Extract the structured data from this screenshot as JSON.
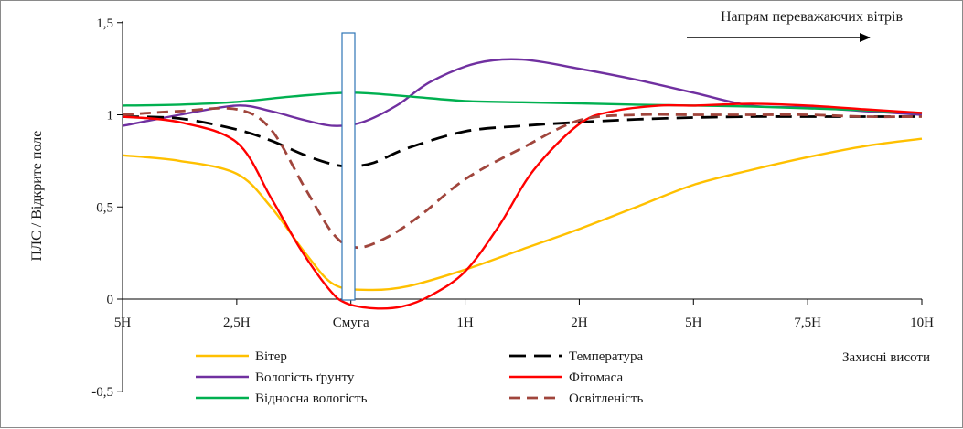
{
  "chart_data": {
    "type": "line",
    "categories": [
      "5Н",
      "2,5Н",
      "Смуга",
      "1Н",
      "2Н",
      "5Н",
      "7,5Н",
      "10Н"
    ],
    "ylabel": "ПЛС / Відкрите поле",
    "xlabel": "Захисні висоти",
    "ylim": [
      -0.5,
      1.5
    ],
    "yticks": [
      "-0,5",
      "0",
      "0,5",
      "1",
      "1,5"
    ],
    "ytick_values": [
      -0.5,
      0,
      0.5,
      1,
      1.5
    ],
    "wind_annotation": "Напрям переважаючих вітрів",
    "legend_position": "bottom",
    "series": [
      {
        "name": "Вітер",
        "color": "#FFC000",
        "dash": "solid",
        "x": [
          0,
          0.5,
          1,
          1.3,
          1.6,
          1.85,
          2.15,
          2.5,
          3,
          3.5,
          4,
          4.5,
          5,
          5.5,
          6,
          6.5,
          7
        ],
        "values": [
          0.78,
          0.75,
          0.68,
          0.5,
          0.25,
          0.08,
          0.05,
          0.07,
          0.16,
          0.27,
          0.38,
          0.5,
          0.62,
          0.7,
          0.77,
          0.83,
          0.87
        ]
      },
      {
        "name": "Вологість ґрунту",
        "color": "#7030A0",
        "dash": "solid",
        "x": [
          0,
          0.5,
          1,
          1.3,
          1.6,
          1.85,
          2.1,
          2.4,
          2.7,
          3.1,
          3.5,
          4,
          4.5,
          5,
          5.5,
          6,
          6.5,
          7
        ],
        "values": [
          0.94,
          1.0,
          1.05,
          1.02,
          0.97,
          0.94,
          0.96,
          1.05,
          1.18,
          1.28,
          1.3,
          1.25,
          1.19,
          1.12,
          1.05,
          1.04,
          1.02,
          1.0
        ]
      },
      {
        "name": "Відносна вологість",
        "color": "#00B050",
        "dash": "solid",
        "x": [
          0,
          0.5,
          1,
          1.5,
          2,
          2.5,
          3,
          3.5,
          4,
          4.5,
          5,
          5.5,
          6,
          6.5,
          7
        ],
        "values": [
          1.05,
          1.055,
          1.07,
          1.1,
          1.12,
          1.1,
          1.075,
          1.068,
          1.062,
          1.055,
          1.05,
          1.045,
          1.035,
          1.025,
          1.01
        ]
      },
      {
        "name": "Температура",
        "color": "#000000",
        "dash": "long",
        "x": [
          0,
          0.5,
          1,
          1.3,
          1.6,
          1.85,
          2.0,
          2.2,
          2.5,
          3,
          3.5,
          4,
          4.5,
          5,
          5.5,
          6,
          6.5,
          7
        ],
        "values": [
          0.99,
          0.98,
          0.92,
          0.86,
          0.78,
          0.73,
          0.72,
          0.74,
          0.82,
          0.91,
          0.94,
          0.96,
          0.975,
          0.985,
          0.99,
          0.99,
          0.99,
          0.99
        ]
      },
      {
        "name": "Фітомаса",
        "color": "#FF0000",
        "dash": "solid",
        "x": [
          0,
          0.5,
          1,
          1.3,
          1.55,
          1.8,
          1.95,
          2.2,
          2.45,
          2.7,
          3,
          3.3,
          3.6,
          4,
          4.3,
          4.7,
          5,
          5.5,
          6,
          6.5,
          7
        ],
        "values": [
          0.99,
          0.96,
          0.85,
          0.55,
          0.28,
          0.06,
          -0.02,
          -0.05,
          -0.04,
          0.02,
          0.15,
          0.4,
          0.7,
          0.95,
          1.02,
          1.05,
          1.05,
          1.06,
          1.05,
          1.03,
          1.01
        ]
      },
      {
        "name": "Освітленість",
        "color": "#A0453C",
        "dash": "dash",
        "x": [
          0,
          0.5,
          1,
          1.3,
          1.6,
          1.85,
          2.05,
          2.3,
          2.6,
          3,
          3.5,
          4,
          4.5,
          5,
          5.5,
          6,
          6.5,
          7
        ],
        "values": [
          1.0,
          1.02,
          1.03,
          0.92,
          0.6,
          0.35,
          0.28,
          0.33,
          0.45,
          0.65,
          0.82,
          0.97,
          1.0,
          1.0,
          1.0,
          1.0,
          0.99,
          0.99
        ]
      }
    ]
  }
}
